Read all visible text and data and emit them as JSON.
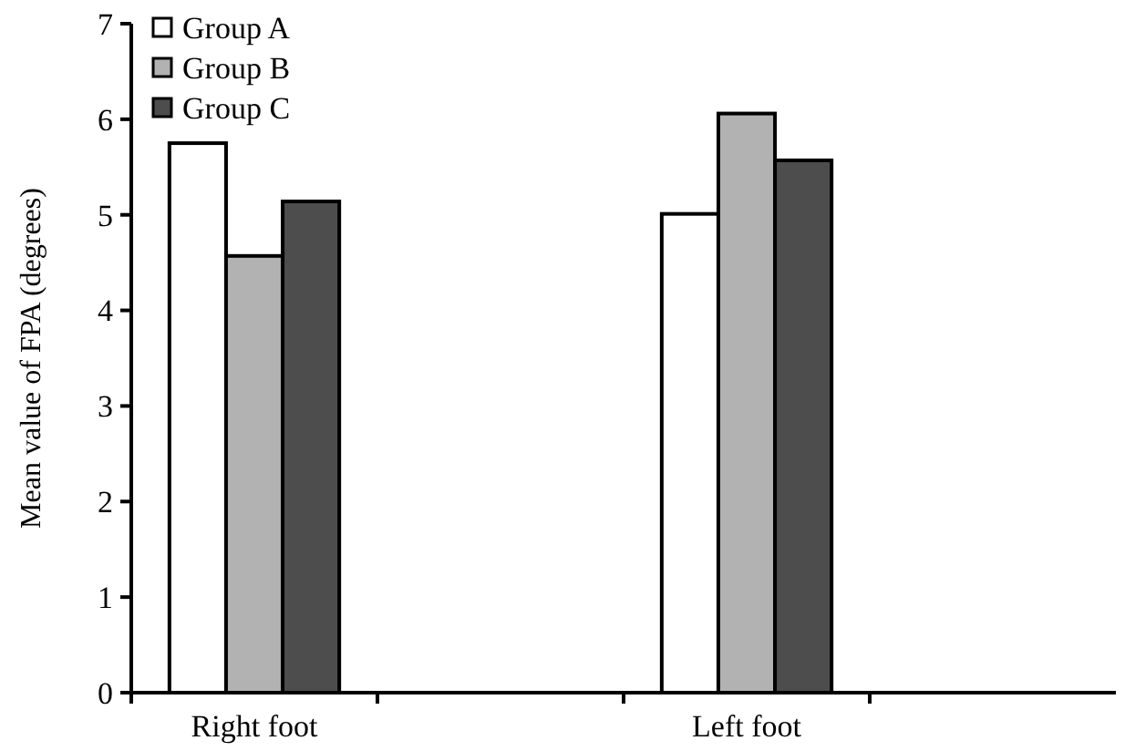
{
  "chart_data": {
    "type": "bar",
    "ylabel": "Mean value of FPA (degrees)",
    "categories": [
      "Right foot",
      null,
      "Left foot",
      null
    ],
    "series": [
      {
        "name": "Group A",
        "color": "#ffffff",
        "values": [
          5.75,
          null,
          5.01,
          null
        ]
      },
      {
        "name": "Group B",
        "color": "#b2b2b2",
        "values": [
          4.57,
          null,
          6.06,
          null
        ]
      },
      {
        "name": "Group C",
        "color": "#4d4d4d",
        "values": [
          5.14,
          null,
          5.57,
          null
        ]
      }
    ],
    "ylim": [
      0,
      7
    ],
    "yticks": [
      0,
      1,
      2,
      3,
      4,
      5,
      6,
      7
    ],
    "legend": "top left",
    "grid": false
  }
}
